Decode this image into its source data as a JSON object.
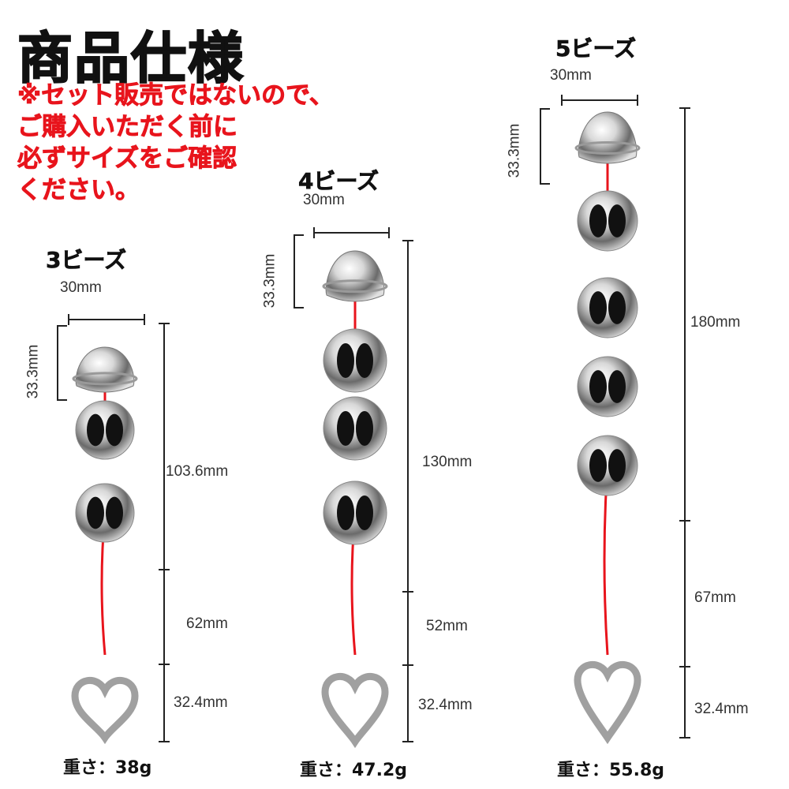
{
  "header": {
    "title": "商品仕様",
    "notes": [
      "※セット販売ではないので、",
      "ご購入いただく前に",
      "必ずサイズをご確認",
      "ください。"
    ]
  },
  "colors": {
    "note": "#e8141c",
    "rope": "#e8141c",
    "metal": "#c8c8c8"
  },
  "products": [
    {
      "title": "3ビーズ",
      "beads": 3,
      "width": "30mm",
      "head_height": "33.3mm",
      "bead_section": "103.6mm",
      "rope": "62mm",
      "handle": "32.4mm",
      "weight": "重さ：38g"
    },
    {
      "title": "4ビーズ",
      "beads": 4,
      "width": "30mm",
      "head_height": "33.3mm",
      "bead_section": "130mm",
      "rope": "52mm",
      "handle": "32.4mm",
      "weight": "重さ：47.2g"
    },
    {
      "title": "5ビーズ",
      "beads": 5,
      "width": "30mm",
      "head_height": "33.3mm",
      "bead_section": "180mm",
      "rope": "67mm",
      "handle": "32.4mm",
      "weight": "重さ：55.8g"
    }
  ]
}
